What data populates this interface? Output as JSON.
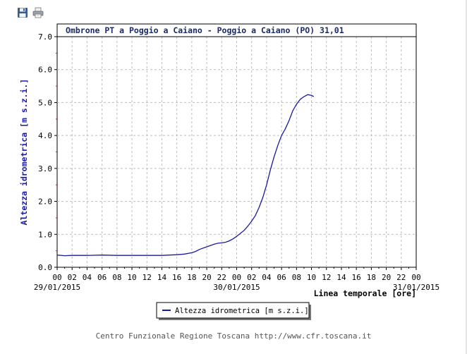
{
  "toolbar": {
    "save": {
      "icon": "floppy-disk-icon"
    },
    "print": {
      "icon": "printer-icon"
    }
  },
  "credit": "Centro Funzionale Regione Toscana http://www.cfr.toscana.it",
  "chart_data": {
    "type": "line",
    "title": "Ombrone PT a Poggio a Caiano - Poggio a Caiano (PO) 31,01",
    "ylabel": "Altezza idrometrica [m s.z.i.]",
    "xlabel": "Linea temporale [ore]",
    "ylim": [
      0,
      7
    ],
    "yticks": [
      "0.0",
      "1.0",
      "2.0",
      "3.0",
      "4.0",
      "5.0",
      "6.0",
      "7.0"
    ],
    "x_hours_range": [
      0,
      48
    ],
    "xtick_labels": [
      "00",
      "02",
      "04",
      "06",
      "08",
      "10",
      "12",
      "14",
      "16",
      "18",
      "20",
      "22",
      "00",
      "02",
      "04",
      "06",
      "08",
      "10",
      "12",
      "14",
      "16",
      "18",
      "20",
      "22",
      "00"
    ],
    "date_labels": [
      {
        "hour": 0,
        "label": "29/01/2015"
      },
      {
        "hour": 24,
        "label": "30/01/2015"
      },
      {
        "hour": 48,
        "label": "31/01/2015"
      }
    ],
    "grid": true,
    "legend_position": "bottom",
    "series": [
      {
        "name": "Altezza idrometrica [m s.z.i.]",
        "color": "#1a1a9e",
        "points": [
          [
            0,
            0.37
          ],
          [
            1,
            0.35
          ],
          [
            2,
            0.36
          ],
          [
            4,
            0.36
          ],
          [
            6,
            0.37
          ],
          [
            8,
            0.36
          ],
          [
            10,
            0.36
          ],
          [
            12,
            0.36
          ],
          [
            14,
            0.36
          ],
          [
            15,
            0.37
          ],
          [
            16,
            0.38
          ],
          [
            17,
            0.4
          ],
          [
            18,
            0.44
          ],
          [
            18.5,
            0.48
          ],
          [
            19,
            0.54
          ],
          [
            20,
            0.62
          ],
          [
            21,
            0.7
          ],
          [
            21.5,
            0.73
          ],
          [
            22,
            0.74
          ],
          [
            22.5,
            0.76
          ],
          [
            23,
            0.8
          ],
          [
            23.5,
            0.86
          ],
          [
            24,
            0.94
          ],
          [
            24.5,
            1.03
          ],
          [
            25,
            1.12
          ],
          [
            25.5,
            1.25
          ],
          [
            26,
            1.4
          ],
          [
            26.5,
            1.57
          ],
          [
            27,
            1.82
          ],
          [
            27.5,
            2.12
          ],
          [
            28,
            2.5
          ],
          [
            28.5,
            2.95
          ],
          [
            29,
            3.35
          ],
          [
            29.5,
            3.7
          ],
          [
            30,
            4.0
          ],
          [
            30.5,
            4.2
          ],
          [
            31,
            4.45
          ],
          [
            31.5,
            4.75
          ],
          [
            32,
            4.95
          ],
          [
            32.5,
            5.1
          ],
          [
            33,
            5.18
          ],
          [
            33.5,
            5.24
          ],
          [
            34,
            5.22
          ],
          [
            34.3,
            5.18
          ]
        ]
      }
    ]
  }
}
